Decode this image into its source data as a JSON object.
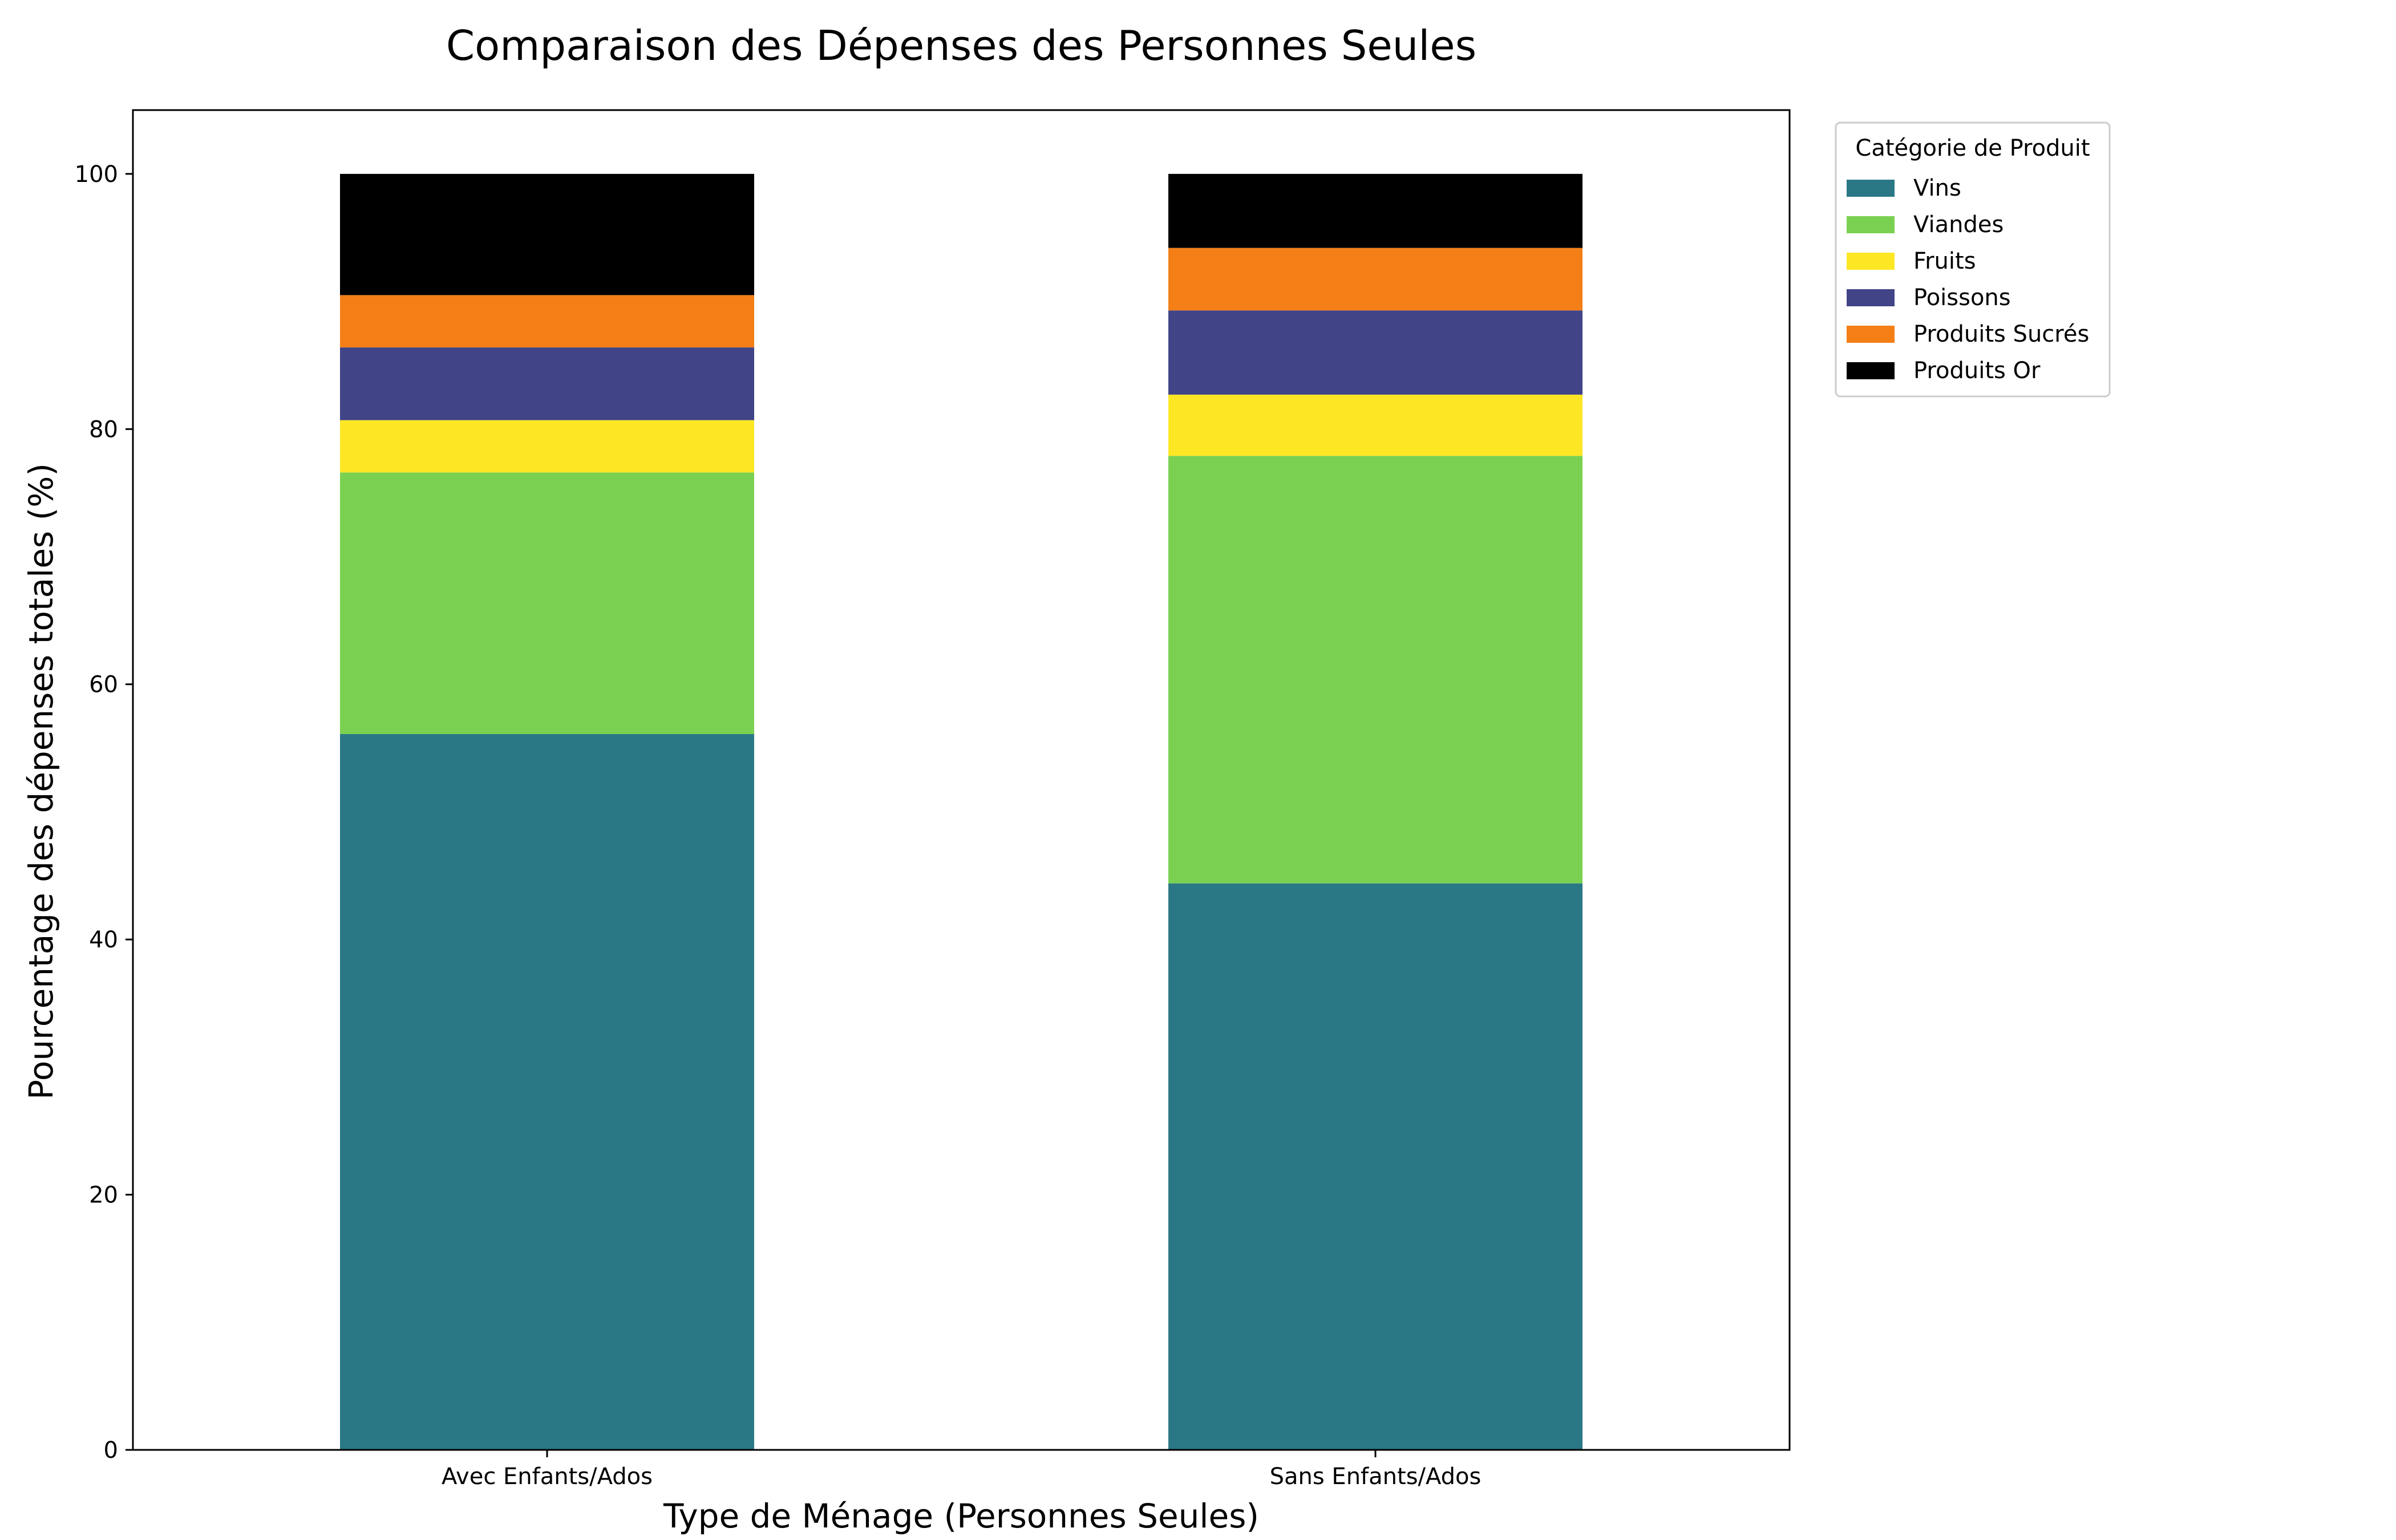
{
  "chart_data": {
    "type": "bar",
    "stacked": true,
    "title": "Comparaison des Dépenses des Personnes Seules",
    "xlabel": "Type de Ménage (Personnes Seules)",
    "ylabel": "Pourcentage des dépenses totales (%)",
    "categories": [
      "Avec Enfants/Ados",
      "Sans Enfants/Ados"
    ],
    "ylim": [
      0,
      105
    ],
    "yticks": [
      0,
      20,
      40,
      60,
      80,
      100
    ],
    "grid": false,
    "legend": {
      "title": "Catégorie de Produit",
      "placement": "outside-top-right"
    },
    "series": [
      {
        "name": "Vins",
        "color": "#2a7886",
        "values": [
          56.1,
          44.4
        ]
      },
      {
        "name": "Viandes",
        "color": "#7ad151",
        "values": [
          20.5,
          33.5
        ]
      },
      {
        "name": "Fruits",
        "color": "#fde725",
        "values": [
          4.1,
          4.8
        ]
      },
      {
        "name": "Poissons",
        "color": "#414487",
        "values": [
          5.7,
          6.6
        ]
      },
      {
        "name": "Produits Sucrés",
        "color": "#f47f17",
        "values": [
          4.1,
          4.9
        ]
      },
      {
        "name": "Produits Or",
        "color": "#000000",
        "values": [
          9.5,
          5.8
        ]
      }
    ]
  }
}
